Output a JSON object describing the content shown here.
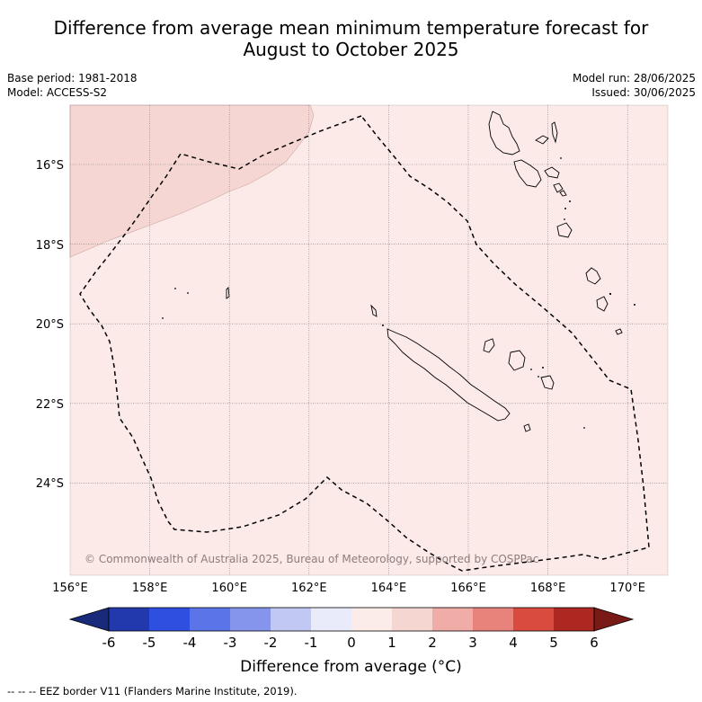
{
  "title_line1": "Difference from average mean minimum temperature forecast for",
  "title_line2": "August to October 2025",
  "meta_left": {
    "base_period": "Base period: 1981-2018",
    "model": "Model: ACCESS-S2"
  },
  "meta_right": {
    "model_run": "Model run: 28/06/2025",
    "issued": "Issued: 30/06/2025"
  },
  "map": {
    "lon_ticks": [
      "156°E",
      "158°E",
      "160°E",
      "162°E",
      "164°E",
      "166°E",
      "168°E",
      "170°E"
    ],
    "lat_ticks": [
      "16°S",
      "18°S",
      "20°S",
      "22°S",
      "24°S"
    ],
    "copyright": "© Commonwealth of Australia 2025, Bureau of Meteorology, supported by COSPPac",
    "region_colors": {
      "zero_to_one": "#fbeae8",
      "one_to_two": "#f5d6d3"
    }
  },
  "colorbar": {
    "title": "Difference from average (°C)",
    "ticks": [
      "-6",
      "-5",
      "-4",
      "-3",
      "-2",
      "-1",
      "0",
      "1",
      "2",
      "3",
      "4",
      "5",
      "6"
    ],
    "colors": [
      "#1a2a7a",
      "#2238ad",
      "#2f4fe0",
      "#5b74e8",
      "#8595ec",
      "#c1c8f4",
      "#e9ebfb",
      "#fcece9",
      "#f6d6d1",
      "#f0aca6",
      "#e8837c",
      "#d94a3f",
      "#ae2822",
      "#7a1a16"
    ]
  },
  "footer": "--  --  -- EEZ border V11 (Flanders Marine Institute, 2019)."
}
